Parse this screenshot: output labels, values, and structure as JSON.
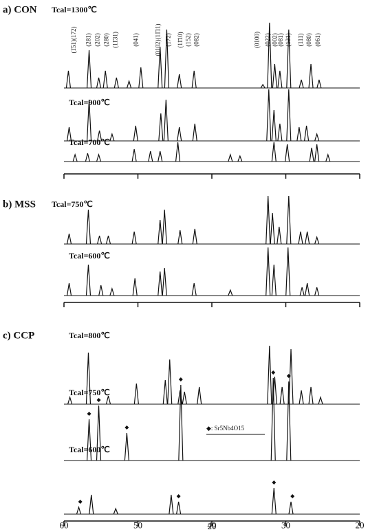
{
  "chart_data": [
    {
      "type": "xrd",
      "title": "a) CON",
      "xlim": [
        60,
        20
      ],
      "xticks": [
        60,
        50,
        40,
        30,
        20
      ],
      "series": [
        {
          "name": "Tcal=1300℃",
          "color": "#111111",
          "x": [
            59.4,
            56.6,
            55.3,
            54.4,
            52.9,
            51.2,
            49.6,
            47.0,
            46.1,
            44.4,
            42.4,
            33.1,
            32.2,
            31.5,
            30.8,
            29.6,
            27.9,
            26.6,
            25.5
          ],
          "values": [
            25,
            55,
            15,
            25,
            15,
            10,
            30,
            60,
            85,
            20,
            25,
            5,
            95,
            35,
            25,
            85,
            12,
            35,
            12
          ]
        },
        {
          "name": "Tcal=900℃",
          "color": "#111111",
          "x": [
            59.3,
            56.6,
            55.2,
            53.5,
            50.3,
            46.9,
            46.2,
            44.4,
            42.3,
            32.3,
            31.6,
            30.8,
            29.6,
            28.2,
            27.2,
            25.8
          ],
          "values": [
            20,
            60,
            15,
            10,
            22,
            40,
            60,
            20,
            25,
            75,
            45,
            25,
            75,
            20,
            22,
            10
          ]
        },
        {
          "name": "Tcal=700℃",
          "color": "#111111",
          "x": [
            58.5,
            56.8,
            55.3,
            50.5,
            48.3,
            47.0,
            44.6,
            37.5,
            36.2,
            31.6,
            29.8,
            26.5,
            25.8,
            24.3
          ],
          "values": [
            10,
            12,
            10,
            18,
            15,
            15,
            28,
            10,
            8,
            28,
            25,
            20,
            25,
            10
          ]
        }
      ],
      "annotations": [
        {
          "text": "(1̄51)(172)",
          "x": 58.6
        },
        {
          "text": "(281)",
          "x": 56.6
        },
        {
          "text": "(202)",
          "x": 55.4
        },
        {
          "text": "(280)",
          "x": 54.2
        },
        {
          "text": "(11̄31)",
          "x": 53.0
        },
        {
          "text": "(041)",
          "x": 50.2
        },
        {
          "text": "(0102)(11̄11)",
          "x": 47.2
        },
        {
          "text": "(172)",
          "x": 45.8
        },
        {
          "text": "(11̄10)",
          "x": 44.2
        },
        {
          "text": "(152)",
          "x": 43.1
        },
        {
          "text": "(082)",
          "x": 42.0
        },
        {
          "text": "(0100)",
          "x": 33.8
        },
        {
          "text": "(022)",
          "x": 32.4
        },
        {
          "text": "(002)",
          "x": 31.4
        },
        {
          "text": "(081)",
          "x": 30.6
        },
        {
          "text": "(131)",
          "x": 29.6
        },
        {
          "text": "(111)",
          "x": 27.9
        },
        {
          "text": "(080)",
          "x": 26.8
        },
        {
          "text": "(061)",
          "x": 25.6
        }
      ]
    },
    {
      "type": "xrd",
      "title": "b) MSS",
      "xlim": [
        60,
        20
      ],
      "xticks": [
        60,
        50,
        40,
        30,
        20
      ],
      "series": [
        {
          "name": "Tcal=750℃",
          "color": "#111111",
          "x": [
            59.3,
            56.7,
            55.2,
            54.0,
            50.5,
            47.0,
            46.4,
            44.3,
            42.3,
            32.4,
            31.8,
            30.9,
            29.6,
            28.0,
            27.1,
            25.8
          ],
          "values": [
            15,
            50,
            12,
            12,
            18,
            35,
            50,
            20,
            22,
            70,
            45,
            25,
            70,
            18,
            18,
            10
          ]
        },
        {
          "name": "Tcal=600℃",
          "color": "#111111",
          "x": [
            59.3,
            56.7,
            55.0,
            53.5,
            50.4,
            47.0,
            46.4,
            42.4,
            37.5,
            32.4,
            31.6,
            29.7,
            27.8,
            27.1,
            25.8
          ],
          "values": [
            18,
            45,
            15,
            10,
            25,
            35,
            40,
            18,
            8,
            70,
            45,
            70,
            12,
            18,
            12
          ]
        }
      ]
    },
    {
      "type": "xrd",
      "title": "c) CCP",
      "xlim": [
        60,
        20
      ],
      "xticks": [
        60,
        50,
        40,
        30,
        20
      ],
      "x_label": "2θ",
      "legend": "◆: Sr5Nb4O15",
      "series": [
        {
          "name": "Tcal=800℃",
          "color": "#111111",
          "x": [
            59.2,
            56.7,
            54.0,
            50.2,
            46.3,
            45.7,
            44.3,
            43.7,
            41.7,
            32.2,
            31.5,
            30.5,
            29.3,
            27.9,
            26.6,
            25.3
          ],
          "values": [
            10,
            75,
            12,
            30,
            35,
            65,
            20,
            18,
            25,
            85,
            40,
            25,
            80,
            20,
            25,
            10
          ]
        },
        {
          "name": "Tcal=750℃",
          "color": "#111111",
          "x": [
            56.6,
            55.3,
            51.5,
            44.2,
            31.7,
            29.6
          ],
          "values": [
            60,
            80,
            40,
            110,
            120,
            115
          ],
          "markers": [
            56.6,
            55.3,
            51.5,
            44.2,
            31.7,
            29.6
          ]
        },
        {
          "name": "Tcal=600℃",
          "color": "#111111",
          "x": [
            58.0,
            56.3,
            53.0,
            45.5,
            44.5,
            31.6,
            29.3
          ],
          "values": [
            10,
            28,
            8,
            28,
            18,
            38,
            18
          ],
          "markers": [
            57.8,
            44.5,
            31.6,
            29.1
          ]
        }
      ]
    }
  ]
}
